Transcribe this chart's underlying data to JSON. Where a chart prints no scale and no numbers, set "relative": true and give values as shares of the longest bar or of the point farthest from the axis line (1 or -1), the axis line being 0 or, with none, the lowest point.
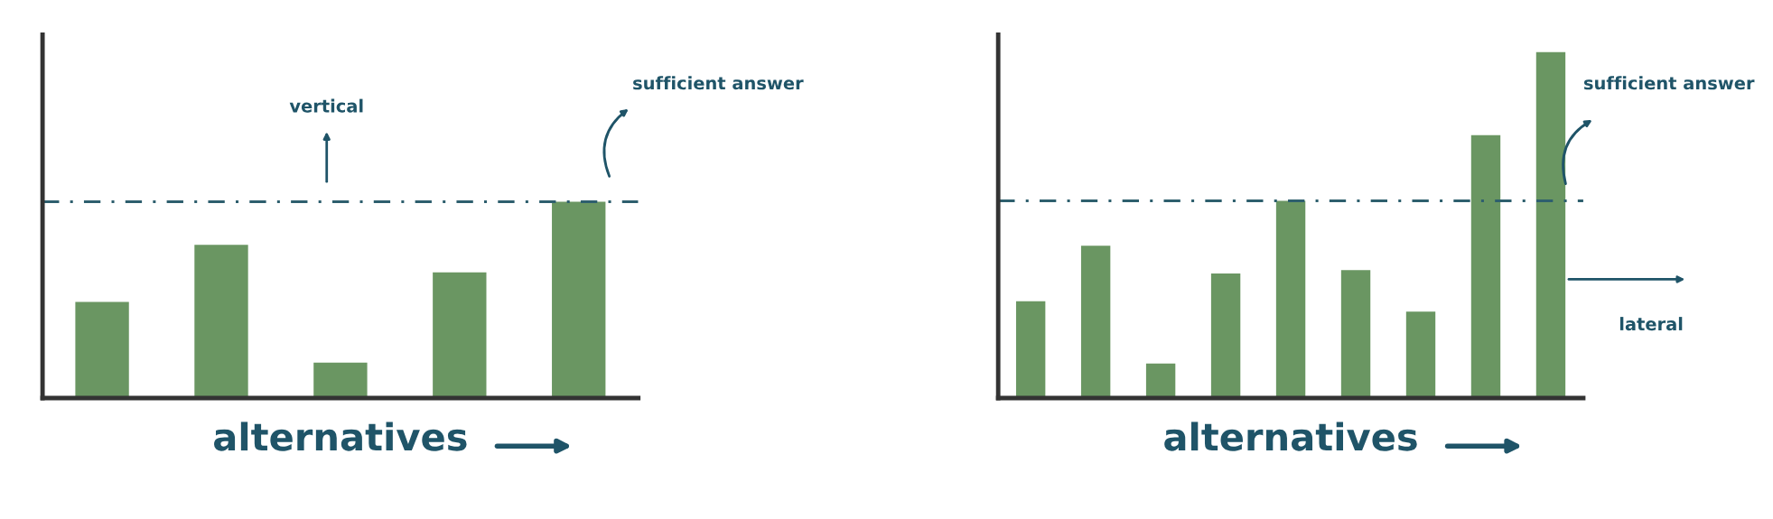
{
  "chart_data": [
    {
      "type": "bar",
      "relative": true,
      "xlabel": "alternatives",
      "categories": [
        null,
        null,
        null,
        null,
        null
      ],
      "series": [
        {
          "color": "#6a9662",
          "values": [
            0.49,
            0.78,
            0.18,
            0.64,
            1.0
          ]
        }
      ],
      "ref_lines": [
        {
          "axis": "y",
          "value": 1.0,
          "color": "#2e5f6e",
          "line_style": "dashed"
        }
      ],
      "annotations": [
        "vertical",
        "sufficient answer"
      ],
      "grid": false,
      "legend": false
    },
    {
      "type": "bar",
      "relative": true,
      "xlabel": "alternatives",
      "categories": [
        null,
        null,
        null,
        null,
        null,
        null,
        null,
        null,
        null
      ],
      "series": [
        {
          "color": "#6a9662",
          "values": [
            0.28,
            0.44,
            0.1,
            0.36,
            0.57,
            0.37,
            0.25,
            0.76,
            1.0
          ]
        }
      ],
      "ref_lines": [
        {
          "axis": "y",
          "value": 0.57,
          "color": "#2e5f6e",
          "line_style": "dashed"
        }
      ],
      "annotations": [
        "sufficient answer",
        "lateral"
      ],
      "grid": false,
      "legend": false
    }
  ]
}
